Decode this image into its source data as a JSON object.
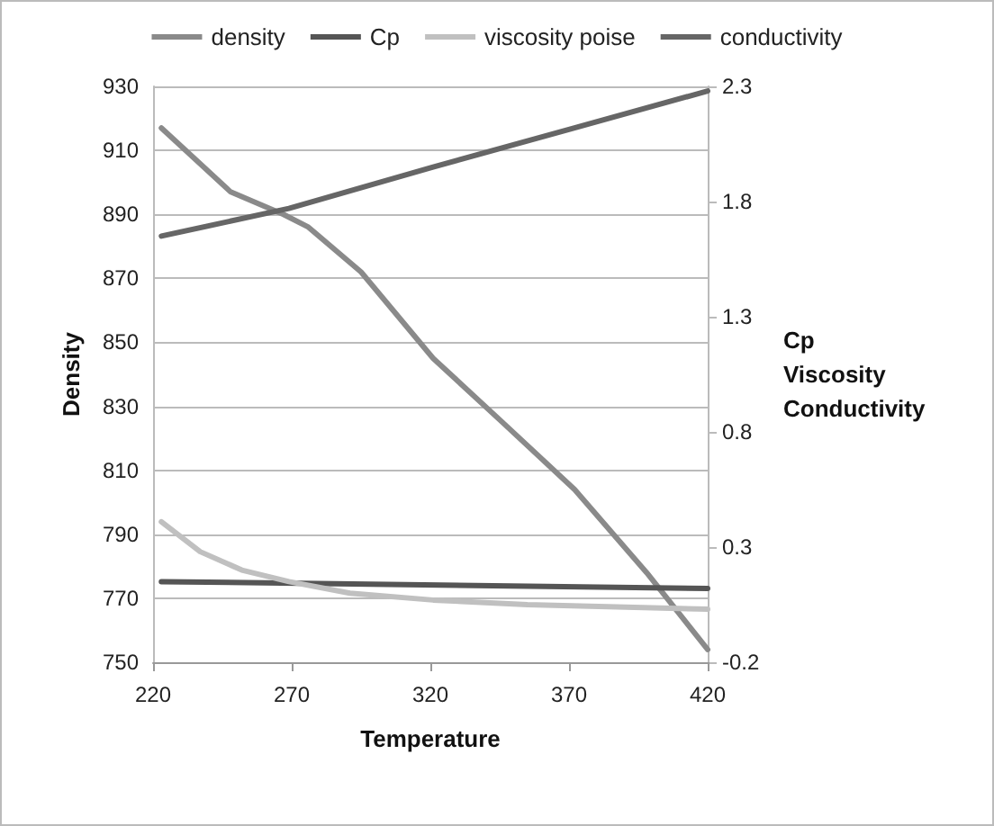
{
  "chart_data": {
    "type": "line",
    "xlabel": "Temperature",
    "ylabel": "Density",
    "y2label": "Cp\nViscosity\nConductivity",
    "xlim": [
      220,
      420
    ],
    "xticks": [
      220,
      270,
      320,
      370,
      420
    ],
    "ylim": [
      750,
      930
    ],
    "yticks": [
      750,
      770,
      790,
      810,
      830,
      850,
      870,
      890,
      910,
      930
    ],
    "y2lim": [
      -0.2,
      2.3
    ],
    "y2ticks": [
      -0.2,
      0.3,
      0.8,
      1.3,
      1.8,
      2.3
    ],
    "grid": "y",
    "legend": "top",
    "marker": "none",
    "line_style": "solid",
    "series": [
      {
        "name": "density",
        "color": "#8a8a8a",
        "x": [
          223,
          248,
          267,
          276,
          295,
          321,
          346,
          372,
          398,
          420
        ],
        "values": [
          917,
          897,
          890,
          886,
          872,
          845,
          825,
          804,
          778,
          754
        ]
      },
      {
        "name": "Cp",
        "color": "#555555",
        "axis": "y2",
        "x": [
          223,
          420
        ],
        "values": [
          0.15,
          0.12
        ]
      },
      {
        "name": "viscosity poise",
        "color": "#c0c0c0",
        "axis": "y2",
        "x": [
          223,
          237,
          252,
          269,
          291,
          321,
          355,
          420
        ],
        "values": [
          0.41,
          0.28,
          0.2,
          0.15,
          0.1,
          0.07,
          0.05,
          0.03
        ]
      },
      {
        "name": "conductivity",
        "color": "#666666",
        "axis": "y2",
        "x": [
          223,
          269,
          321,
          372,
          420
        ],
        "values": [
          1.65,
          1.77,
          1.95,
          2.12,
          2.28
        ]
      }
    ]
  }
}
